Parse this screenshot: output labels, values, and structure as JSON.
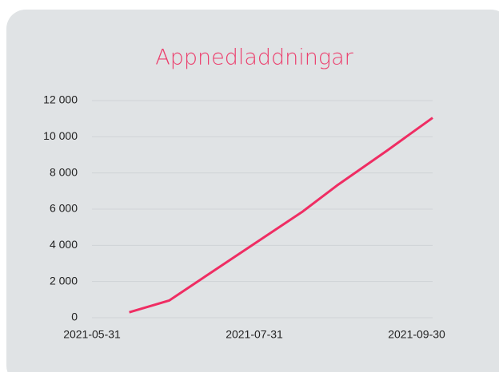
{
  "chart_data": {
    "type": "line",
    "title": "Appnedladdningar",
    "x": [
      "2021-06-14",
      "2021-06-29",
      "2021-08-18",
      "2021-08-31",
      "2021-09-19",
      "2021-10-06"
    ],
    "series": [
      {
        "name": "Appnedladdningar",
        "color": "#ef2d63",
        "values": [
          300,
          950,
          5850,
          7300,
          9250,
          11050
        ]
      }
    ],
    "xlim": [
      "2021-05-31",
      "2021-10-06"
    ],
    "xticks": [
      "2021-05-31",
      "2021-07-31",
      "2021-09-30"
    ],
    "ylim": [
      0,
      12000
    ],
    "yticks": [
      0,
      {
        "value": 2000,
        "label": "2 000"
      },
      {
        "value": 4000,
        "label": "4 000"
      },
      {
        "value": 6000,
        "label": "6 000"
      },
      {
        "value": 8000,
        "label": "8 000"
      },
      {
        "value": 10000,
        "label": "10 000"
      },
      {
        "value": 12000,
        "label": "12 000"
      }
    ],
    "grid": true
  }
}
